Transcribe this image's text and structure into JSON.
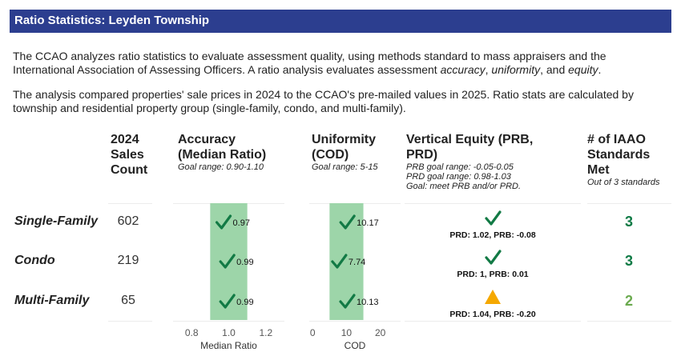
{
  "header": {
    "title": "Ratio Statistics: Leyden Township"
  },
  "intro": [
    [
      {
        "text": "The CCAO analyzes ratio statistics to evaluate assessment quality, using methods standard to mass appraisers and the International Association of Assessing Officers. A ratio analysis evaluates assessment "
      },
      {
        "text": "accuracy",
        "italic": true
      },
      {
        "text": ", "
      },
      {
        "text": "uniformity",
        "italic": true
      },
      {
        "text": ", and "
      },
      {
        "text": "equity",
        "italic": true
      },
      {
        "text": "."
      }
    ],
    [
      {
        "text": "The analysis compared properties' sale prices in 2024 to the CCAO's pre-mailed values in 2025. Ratio stats are calculated by township and residential property group (single-family, condo, and multi-family)."
      }
    ]
  ],
  "table": {
    "columns": {
      "sales": {
        "title": "2024 Sales Count"
      },
      "accuracy": {
        "title": "Accuracy (Median Ratio)",
        "notes": [
          "Goal range: 0.90-1.10"
        ]
      },
      "uniformity": {
        "title": "Uniformity (COD)",
        "notes": [
          "Goal range: 5-15"
        ]
      },
      "equity": {
        "title": "Vertical Equity (PRB, PRD)",
        "notes": [
          "PRB goal range: -0.05-0.05",
          "PRD goal range: 0.98-1.03",
          "Goal: meet PRB and/or PRD."
        ]
      },
      "standards": {
        "title": "# of IAAO Standards Met",
        "notes": [
          "Out of 3 standards"
        ]
      }
    },
    "accuracy_axis": {
      "xlim": [
        0.7,
        1.3
      ],
      "xticks": [
        0.8,
        {
          "value": 1,
          "label": "1.0"
        },
        1.2
      ],
      "xlabel": "Median Ratio",
      "goal_range": [
        0.9,
        1.1
      ],
      "band_color": "#9dd5a9",
      "mark_color": "#127a45"
    },
    "uniformity_axis": {
      "xlim": [
        -1,
        26
      ],
      "xticks": [
        0,
        10,
        20
      ],
      "xlabel": "COD",
      "goal_range": [
        5,
        15
      ],
      "band_color": "#9dd5a9",
      "mark_color": "#127a45"
    },
    "rows": [
      {
        "label": "Single-Family",
        "sales_count": 602,
        "median_ratio": 0.97,
        "cod": 10.17,
        "equity_label": "PRD: 1.02, PRB: -0.08",
        "equity_icon": "check",
        "standards_met": 3,
        "standards_color": "#0f7a45"
      },
      {
        "label": "Condo",
        "sales_count": 219,
        "median_ratio": 0.99,
        "cod": 7.74,
        "equity_label": "PRD: 1, PRB: 0.01",
        "equity_icon": "check",
        "standards_met": 3,
        "standards_color": "#0f7a45"
      },
      {
        "label": "Multi-Family",
        "sales_count": 65,
        "median_ratio": 0.99,
        "cod": 10.13,
        "equity_label": "PRD: 1.04, PRB: -0.20",
        "equity_icon": "warning",
        "standards_met": 2,
        "standards_color": "#6aaa4e"
      }
    ]
  }
}
